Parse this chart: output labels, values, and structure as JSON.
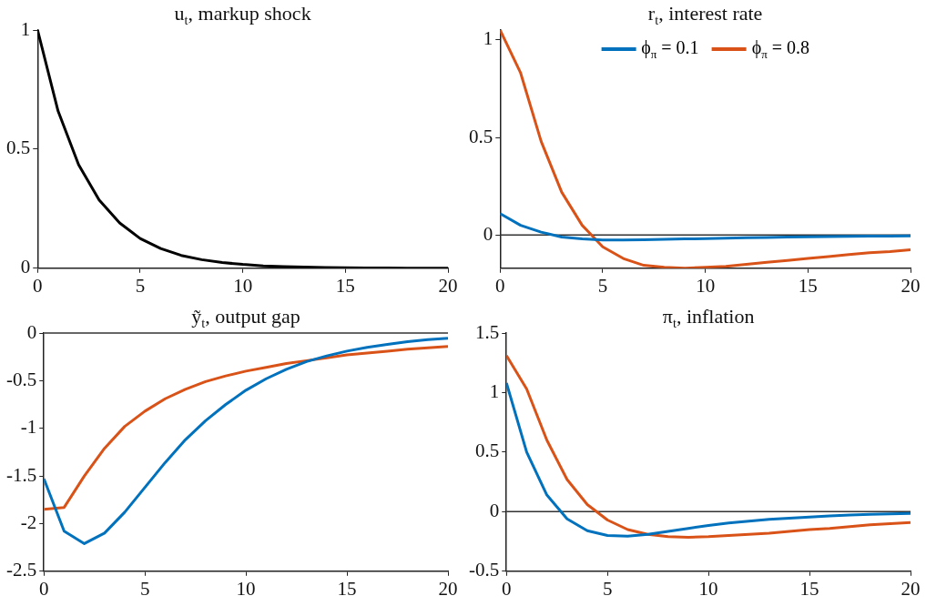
{
  "chart_data": [
    {
      "type": "line",
      "title": "u$_{t}$, markup shock",
      "x": [
        0,
        1,
        2,
        3,
        4,
        5,
        6,
        7,
        8,
        9,
        10,
        11,
        12,
        13,
        14,
        15,
        16,
        17,
        18,
        19,
        20
      ],
      "xlim": [
        0,
        20
      ],
      "xticks": [
        0,
        5,
        10,
        15,
        20
      ],
      "ylim": [
        0,
        1
      ],
      "yticks": [
        0,
        0.5,
        1
      ],
      "grid": false,
      "legend": false,
      "series": [
        {
          "color": "#000000",
          "values": [
            1,
            0.66,
            0.435,
            0.287,
            0.19,
            0.125,
            0.083,
            0.054,
            0.036,
            0.024,
            0.016,
            0.01,
            0.007,
            0.005,
            0.003,
            0.002,
            0.001,
            0.001,
            0,
            0,
            0
          ]
        }
      ]
    },
    {
      "type": "line",
      "title": "r$_{t}$, interest rate",
      "x": [
        0,
        1,
        2,
        3,
        4,
        5,
        6,
        7,
        8,
        9,
        10,
        11,
        12,
        13,
        14,
        15,
        16,
        17,
        18,
        19,
        20
      ],
      "xlim": [
        0,
        20
      ],
      "xticks": [
        0,
        5,
        10,
        15,
        20
      ],
      "ylim": [
        -0.17,
        1.05
      ],
      "yticks": [
        0,
        0.5,
        1
      ],
      "grid": false,
      "legend": "top",
      "ref_lines": [
        {
          "axis": "y",
          "value": 0,
          "color": "#333333"
        }
      ],
      "series": [
        {
          "name": "ϕ$_{π}$ = 0.1",
          "color": "#0072bd",
          "values": [
            0.11,
            0.05,
            0.015,
            -0.01,
            -0.02,
            -0.025,
            -0.025,
            -0.024,
            -0.022,
            -0.02,
            -0.018,
            -0.016,
            -0.014,
            -0.012,
            -0.01,
            -0.009,
            -0.008,
            -0.007,
            -0.006,
            -0.005,
            -0.004
          ]
        },
        {
          "name": "ϕ$_{π}$ = 0.8",
          "color": "#d95319",
          "values": [
            1.05,
            0.83,
            0.48,
            0.22,
            0.05,
            -0.06,
            -0.12,
            -0.155,
            -0.165,
            -0.17,
            -0.165,
            -0.16,
            -0.15,
            -0.14,
            -0.13,
            -0.12,
            -0.11,
            -0.1,
            -0.09,
            -0.085,
            -0.075
          ]
        }
      ]
    },
    {
      "type": "line",
      "title": "ỹ$_{t}$, output gap",
      "x": [
        0,
        1,
        2,
        3,
        4,
        5,
        6,
        7,
        8,
        9,
        10,
        11,
        12,
        13,
        14,
        15,
        16,
        17,
        18,
        19,
        20
      ],
      "xlim": [
        0,
        20
      ],
      "xticks": [
        0,
        5,
        10,
        15,
        20
      ],
      "ylim": [
        -2.5,
        0
      ],
      "yticks": [
        -2.5,
        -2,
        -1.5,
        -1,
        -0.5,
        0
      ],
      "grid": false,
      "legend": false,
      "ref_lines": [
        {
          "axis": "y",
          "value": 0,
          "color": "#333333"
        }
      ],
      "series": [
        {
          "color": "#0072bd",
          "values": [
            -1.53,
            -2.08,
            -2.21,
            -2.1,
            -1.88,
            -1.62,
            -1.36,
            -1.12,
            -0.92,
            -0.75,
            -0.6,
            -0.48,
            -0.38,
            -0.3,
            -0.24,
            -0.19,
            -0.15,
            -0.12,
            -0.09,
            -0.07,
            -0.055
          ]
        },
        {
          "color": "#d95319",
          "values": [
            -1.85,
            -1.83,
            -1.5,
            -1.21,
            -0.98,
            -0.82,
            -0.69,
            -0.59,
            -0.51,
            -0.45,
            -0.4,
            -0.36,
            -0.32,
            -0.29,
            -0.26,
            -0.23,
            -0.21,
            -0.19,
            -0.17,
            -0.155,
            -0.14
          ]
        }
      ]
    },
    {
      "type": "line",
      "title": "π$_{t}$, inflation",
      "x": [
        0,
        1,
        2,
        3,
        4,
        5,
        6,
        7,
        8,
        9,
        10,
        11,
        12,
        13,
        14,
        15,
        16,
        17,
        18,
        19,
        20
      ],
      "xlim": [
        0,
        20
      ],
      "xticks": [
        0,
        5,
        10,
        15,
        20
      ],
      "ylim": [
        -0.5,
        1.5
      ],
      "yticks": [
        -0.5,
        0,
        0.5,
        1,
        1.5
      ],
      "grid": false,
      "legend": false,
      "ref_lines": [
        {
          "axis": "y",
          "value": 0,
          "color": "#333333"
        }
      ],
      "series": [
        {
          "color": "#0072bd",
          "values": [
            1.08,
            0.5,
            0.14,
            -0.06,
            -0.16,
            -0.2,
            -0.205,
            -0.19,
            -0.165,
            -0.14,
            -0.115,
            -0.095,
            -0.08,
            -0.065,
            -0.055,
            -0.045,
            -0.035,
            -0.028,
            -0.022,
            -0.018,
            -0.015
          ]
        },
        {
          "color": "#d95319",
          "values": [
            1.31,
            1.03,
            0.6,
            0.27,
            0.06,
            -0.07,
            -0.15,
            -0.19,
            -0.21,
            -0.215,
            -0.21,
            -0.2,
            -0.19,
            -0.18,
            -0.165,
            -0.15,
            -0.14,
            -0.125,
            -0.11,
            -0.1,
            -0.09
          ]
        }
      ]
    }
  ]
}
